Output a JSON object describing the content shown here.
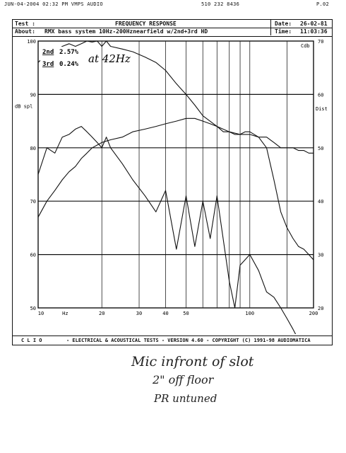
{
  "fax_header": {
    "left": "JUN-04-2004 02:32 PM  VMPS AUDIO",
    "middle": "510 232 8436",
    "right": "P.02"
  },
  "header": {
    "test_label": "Test :",
    "title": "FREQUENCY RESPONSE",
    "about_label": "About:",
    "about_text": "RMX bass system 10Hz-200Hznearfield w/2nd+3rd HD",
    "date_label": "Date:",
    "date_value": "26-02-81",
    "time_label": "Time:",
    "time_value": "11:03:36"
  },
  "footer": {
    "brand": "C L I O",
    "text": "- ELECTRICAL & ACOUSTICAL TESTS - VERSION 4.60 - COPYRIGHT (C) 1991-98 AUDIOMATICA"
  },
  "annotations": {
    "legend_2nd_label": "2nd",
    "legend_2nd_value": "2.57%",
    "legend_3rd_label": "3rd",
    "legend_3rd_value": "0.24%",
    "at_note": "at 42Hz",
    "hand_note_1": "Mic infront of slot",
    "hand_note_2": "2\" off floor",
    "hand_note_3": "PR untuned"
  },
  "chart_data": {
    "type": "line",
    "title": "FREQUENCY RESPONSE",
    "xscale": "log",
    "xlim": [
      10,
      200
    ],
    "ylim_left": [
      50,
      100
    ],
    "ylim_right": [
      20,
      70
    ],
    "xlabel": "Hz",
    "ylabel_left": "dB spl",
    "ylabel_right": "Dist",
    "right_unit_top": "Cdb",
    "grid": true,
    "x_ticks": [
      {
        "v": 10,
        "t": "10"
      },
      {
        "v": 20,
        "t": "20"
      },
      {
        "v": 30,
        "t": "30"
      },
      {
        "v": 40,
        "t": "40"
      },
      {
        "v": 50,
        "t": "50"
      },
      {
        "v": 100,
        "t": "100"
      },
      {
        "v": 200,
        "t": "200"
      }
    ],
    "y_ticks_left": [
      "100",
      "90",
      "80",
      "70",
      "60",
      "50"
    ],
    "y_ticks_right": [
      "70",
      "60",
      "50",
      "40",
      "30",
      "20"
    ],
    "series": [
      {
        "x": [
          10,
          11,
          12,
          13,
          14,
          15,
          16,
          17,
          18,
          19,
          20,
          21,
          22,
          25,
          28,
          32,
          36,
          40,
          45,
          50,
          55,
          60,
          70,
          80,
          90,
          100,
          110,
          120,
          130,
          140,
          150,
          160,
          170,
          180,
          190,
          200
        ],
        "y": [
          96,
          97.5,
          98,
          99,
          99.5,
          99,
          99.5,
          100,
          99.8,
          100,
          99,
          100,
          99,
          98.5,
          98,
          97,
          96,
          94.5,
          92,
          90,
          88,
          86,
          84,
          83,
          82.5,
          82.5,
          82,
          82,
          81,
          80,
          80,
          80,
          79.5,
          79.5,
          79,
          79
        ]
      },
      {
        "x": [
          10,
          11,
          12,
          13,
          14,
          15,
          16,
          17,
          18,
          19,
          20,
          21,
          22,
          25,
          28,
          32,
          36,
          40,
          45,
          50,
          55,
          60,
          65,
          70,
          80,
          85,
          90,
          100,
          110,
          120,
          130,
          140,
          150,
          160,
          170,
          180,
          190,
          200
        ],
        "y": [
          75,
          80,
          79,
          82,
          82.5,
          83.5,
          84,
          83,
          82,
          81,
          80,
          82,
          80,
          77,
          74,
          71,
          68,
          72,
          61,
          71,
          61.5,
          70,
          63,
          71,
          55,
          50,
          58,
          60,
          57,
          53,
          52,
          50,
          48,
          46,
          44,
          42,
          40,
          39
        ]
      },
      {
        "x": [
          10,
          11,
          12,
          13,
          14,
          15,
          16,
          17,
          18,
          19,
          20,
          22,
          25,
          28,
          32,
          36,
          40,
          45,
          50,
          55,
          60,
          65,
          70,
          75,
          80,
          85,
          90,
          95,
          100,
          110,
          120,
          130,
          140,
          150,
          160,
          170,
          180,
          190,
          200
        ],
        "y": [
          67,
          70,
          72,
          74,
          75.5,
          76.5,
          78,
          79,
          80,
          80.5,
          81,
          81.5,
          82,
          83,
          83.5,
          84,
          84.5,
          85,
          85.5,
          85.5,
          85,
          84.5,
          84,
          83,
          83,
          82.5,
          82.5,
          83,
          83,
          82,
          80,
          74,
          68,
          65,
          63,
          61.5,
          61,
          60,
          59
        ]
      }
    ]
  }
}
